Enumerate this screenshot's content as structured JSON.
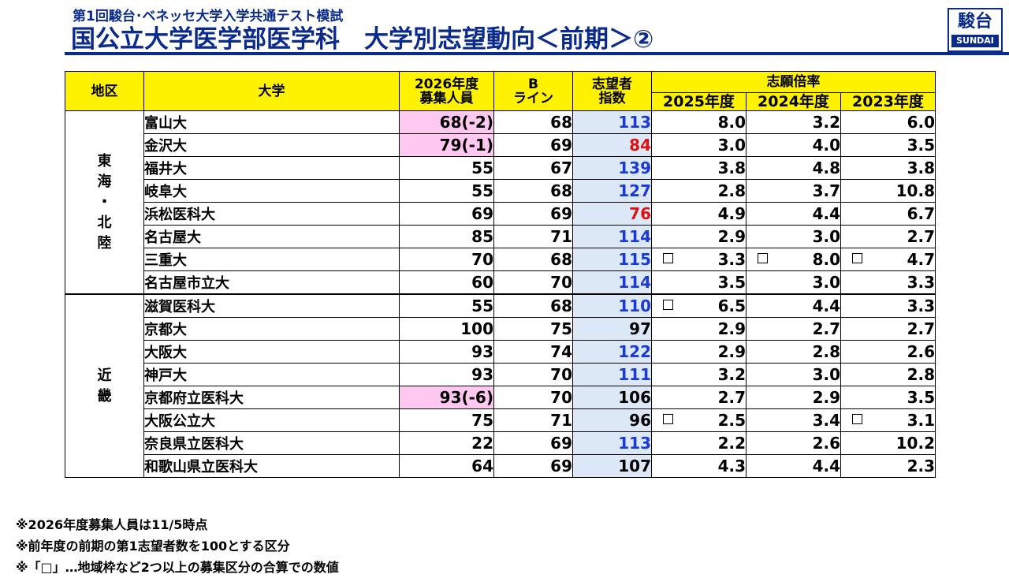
{
  "header": {
    "subtitle": "第1回駿台･ベネッセ大学入学共通テスト模試",
    "title": "国公立大学医学部医学科　大学別志望動向＜前期＞②",
    "logo_kanji": "駿台",
    "logo_latin": "SUNDAI"
  },
  "table": {
    "headers": {
      "region": "地区",
      "university": "大学",
      "quota_line1": "2026年度",
      "quota_line2": "募集人員",
      "bline_line1": "B",
      "bline_line2": "ライン",
      "index_line1": "志望者",
      "index_line2": "指数",
      "ratio_group": "志願倍率",
      "ratio_years": [
        "2025年度",
        "2024年度",
        "2023年度"
      ]
    },
    "groups": [
      {
        "region_chars": [
          "東",
          "海",
          "・",
          "北",
          "陸"
        ],
        "rows": [
          {
            "name": "富山大",
            "quota": "68(-2)",
            "quota_highlight": true,
            "bline": "68",
            "index": "113",
            "index_color": "blue",
            "ratios": [
              "8.0",
              "3.2",
              "6.0"
            ],
            "boxes": [
              false,
              false,
              false
            ]
          },
          {
            "name": "金沢大",
            "quota": "79(-1)",
            "quota_highlight": true,
            "bline": "69",
            "index": "84",
            "index_color": "red",
            "ratios": [
              "3.0",
              "4.0",
              "3.5"
            ],
            "boxes": [
              false,
              false,
              false
            ]
          },
          {
            "name": "福井大",
            "quota": "55",
            "quota_highlight": false,
            "bline": "67",
            "index": "139",
            "index_color": "blue",
            "ratios": [
              "3.8",
              "4.8",
              "3.8"
            ],
            "boxes": [
              false,
              false,
              false
            ]
          },
          {
            "name": "岐阜大",
            "quota": "55",
            "quota_highlight": false,
            "bline": "68",
            "index": "127",
            "index_color": "blue",
            "ratios": [
              "2.8",
              "3.7",
              "10.8"
            ],
            "boxes": [
              false,
              false,
              false
            ]
          },
          {
            "name": "浜松医科大",
            "quota": "69",
            "quota_highlight": false,
            "bline": "69",
            "index": "76",
            "index_color": "red",
            "ratios": [
              "4.9",
              "4.4",
              "6.7"
            ],
            "boxes": [
              false,
              false,
              false
            ]
          },
          {
            "name": "名古屋大",
            "quota": "85",
            "quota_highlight": false,
            "bline": "71",
            "index": "114",
            "index_color": "blue",
            "ratios": [
              "2.9",
              "3.0",
              "2.7"
            ],
            "boxes": [
              false,
              false,
              false
            ]
          },
          {
            "name": "三重大",
            "quota": "70",
            "quota_highlight": false,
            "bline": "68",
            "index": "115",
            "index_color": "blue",
            "ratios": [
              "3.3",
              "8.0",
              "4.7"
            ],
            "boxes": [
              true,
              true,
              true
            ]
          },
          {
            "name": "名古屋市立大",
            "quota": "60",
            "quota_highlight": false,
            "bline": "70",
            "index": "114",
            "index_color": "blue",
            "ratios": [
              "3.5",
              "3.0",
              "3.3"
            ],
            "boxes": [
              false,
              false,
              false
            ]
          }
        ]
      },
      {
        "region_chars": [
          "近",
          "畿"
        ],
        "rows": [
          {
            "name": "滋賀医科大",
            "quota": "55",
            "quota_highlight": false,
            "bline": "68",
            "index": "110",
            "index_color": "blue",
            "ratios": [
              "6.5",
              "4.4",
              "3.3"
            ],
            "boxes": [
              true,
              false,
              false
            ]
          },
          {
            "name": "京都大",
            "quota": "100",
            "quota_highlight": false,
            "bline": "75",
            "index": "97",
            "index_color": "black",
            "ratios": [
              "2.9",
              "2.7",
              "2.7"
            ],
            "boxes": [
              false,
              false,
              false
            ]
          },
          {
            "name": "大阪大",
            "quota": "93",
            "quota_highlight": false,
            "bline": "74",
            "index": "122",
            "index_color": "blue",
            "ratios": [
              "2.9",
              "2.8",
              "2.6"
            ],
            "boxes": [
              false,
              false,
              false
            ]
          },
          {
            "name": "神戸大",
            "quota": "93",
            "quota_highlight": false,
            "bline": "70",
            "index": "111",
            "index_color": "blue",
            "ratios": [
              "3.2",
              "3.0",
              "2.8"
            ],
            "boxes": [
              false,
              false,
              false
            ]
          },
          {
            "name": "京都府立医科大",
            "quota": "93(-6)",
            "quota_highlight": true,
            "bline": "70",
            "index": "106",
            "index_color": "black",
            "ratios": [
              "2.7",
              "2.9",
              "3.5"
            ],
            "boxes": [
              false,
              false,
              false
            ]
          },
          {
            "name": "大阪公立大",
            "quota": "75",
            "quota_highlight": false,
            "bline": "71",
            "index": "96",
            "index_color": "black",
            "ratios": [
              "2.5",
              "3.4",
              "3.1"
            ],
            "boxes": [
              true,
              false,
              true
            ]
          },
          {
            "name": "奈良県立医科大",
            "quota": "22",
            "quota_highlight": false,
            "bline": "69",
            "index": "113",
            "index_color": "blue",
            "ratios": [
              "2.2",
              "2.6",
              "10.2"
            ],
            "boxes": [
              false,
              false,
              false
            ]
          },
          {
            "name": "和歌山県立医科大",
            "quota": "64",
            "quota_highlight": false,
            "bline": "69",
            "index": "107",
            "index_color": "black",
            "ratios": [
              "4.3",
              "4.4",
              "2.3"
            ],
            "boxes": [
              false,
              false,
              false
            ]
          }
        ]
      }
    ]
  },
  "notes": [
    "※2026年度募集人員は11/5時点",
    "※前年度の前期の第1志望者数を100とする区分",
    "※「□」…地域枠など2つ以上の募集区分の合算での数値"
  ]
}
